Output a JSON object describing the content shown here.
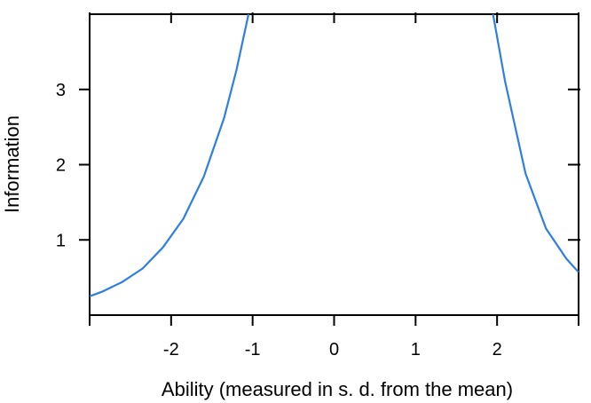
{
  "chart_data": {
    "type": "line",
    "title": "",
    "xlabel": "Ability (measured in s. d. from the mean)",
    "ylabel": "Information",
    "xlim": [
      -3,
      3
    ],
    "ylim": [
      0,
      4
    ],
    "xticks": [
      -2,
      -1,
      0,
      1,
      2
    ],
    "xtick_labels": [
      "-2",
      "-1",
      "0",
      "1",
      "2"
    ],
    "yticks": [
      1,
      2,
      3
    ],
    "ytick_labels": [
      "1",
      "2",
      "3"
    ],
    "grid": false,
    "line_color": "#2f7fe0",
    "series": [
      {
        "segments": [
          {
            "x": [
              -3.0,
              -2.85,
              -2.6,
              -2.35,
              -2.1,
              -1.85,
              -1.6,
              -1.35,
              -1.2,
              -1.05
            ],
            "y": [
              0.25,
              0.31,
              0.44,
              0.62,
              0.9,
              1.28,
              1.84,
              2.62,
              3.25,
              4.0
            ]
          },
          {
            "x": [
              1.95,
              2.1,
              2.35,
              2.6,
              2.85,
              3.0
            ],
            "y": [
              4.0,
              3.1,
              1.88,
              1.15,
              0.75,
              0.57
            ]
          }
        ]
      }
    ]
  }
}
